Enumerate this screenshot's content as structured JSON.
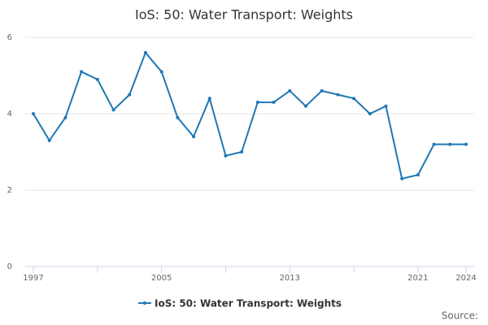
{
  "chart_data": {
    "type": "line",
    "title": "IoS: 50: Water Transport: Weights",
    "x": [
      1997,
      1998,
      1999,
      2000,
      2001,
      2002,
      2003,
      2004,
      2005,
      2006,
      2007,
      2008,
      2009,
      2010,
      2011,
      2012,
      2013,
      2014,
      2015,
      2016,
      2017,
      2018,
      2019,
      2020,
      2021,
      2022,
      2023,
      2024
    ],
    "series": [
      {
        "name": "IoS: 50: Water Transport: Weights",
        "color": "#1f78b4",
        "values": [
          4.0,
          3.3,
          3.9,
          5.1,
          4.9,
          4.1,
          4.5,
          5.6,
          5.1,
          3.9,
          3.4,
          4.4,
          2.9,
          3.0,
          4.3,
          4.3,
          4.6,
          4.2,
          4.6,
          4.5,
          4.4,
          4.0,
          4.2,
          2.3,
          2.4,
          3.2,
          3.2,
          3.2
        ]
      }
    ],
    "xlim": [
      1997,
      2024
    ],
    "xticks": [
      1997,
      2005,
      2013,
      2021,
      2024
    ],
    "xminorticks": [
      2001,
      2009,
      2017
    ],
    "ylim": [
      0,
      6
    ],
    "yticks": [
      0,
      2,
      4,
      6
    ],
    "grid": true,
    "legend": "bottom",
    "source": "Source:"
  }
}
